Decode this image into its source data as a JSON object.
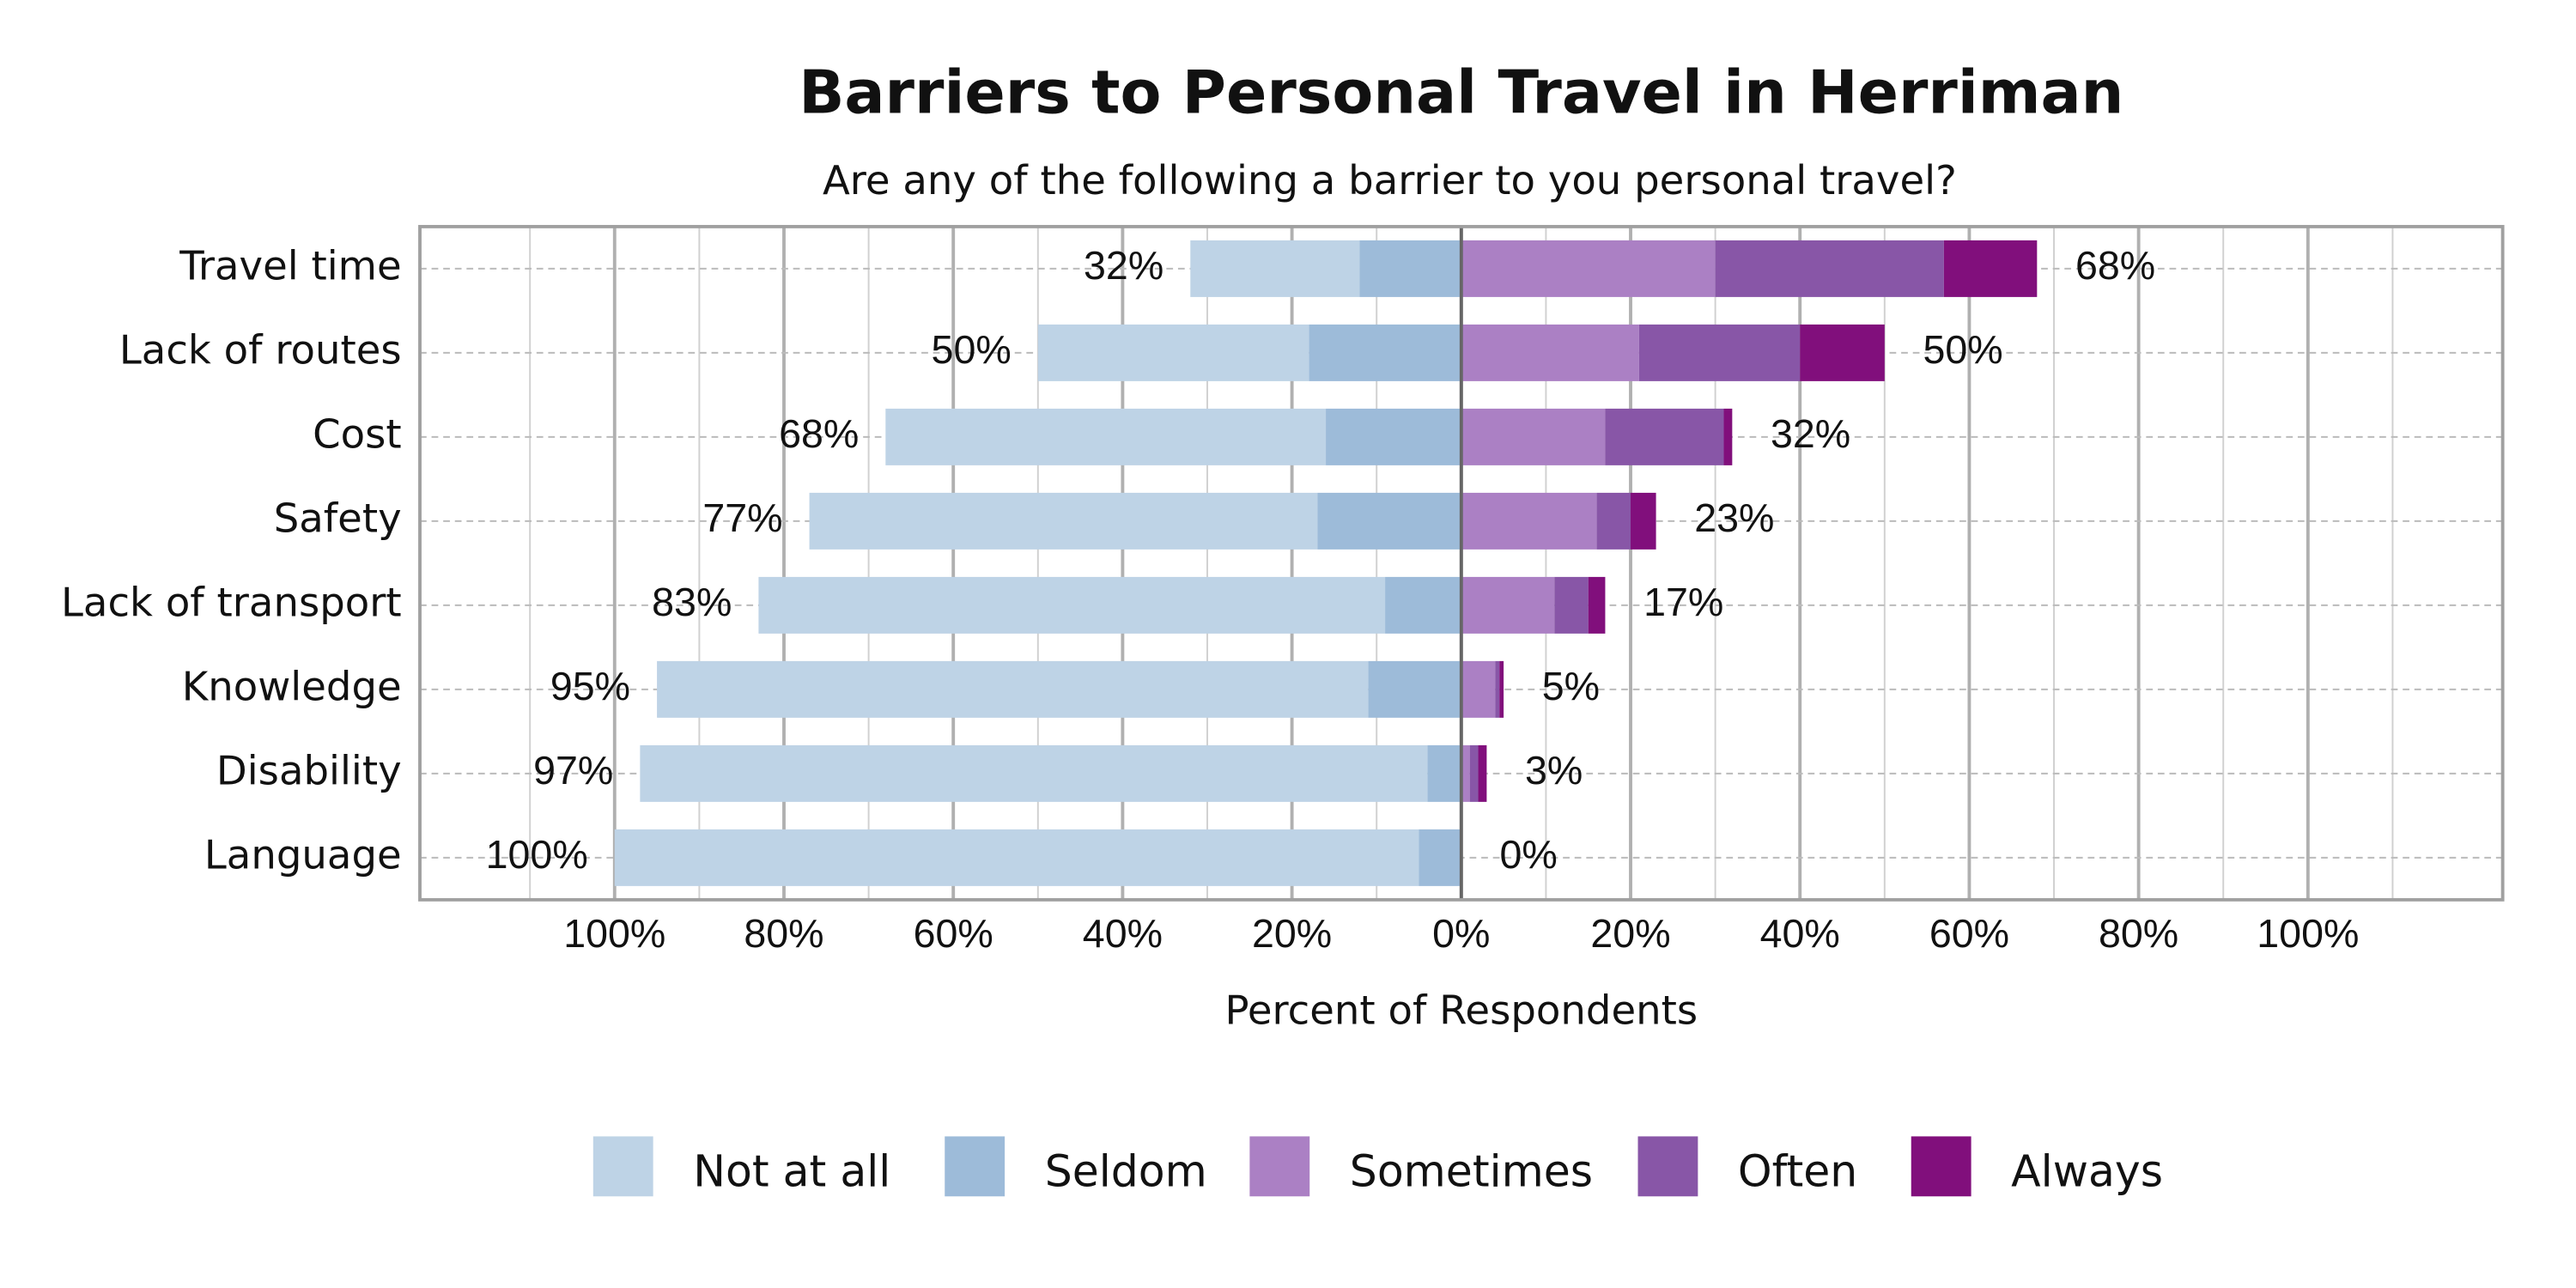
{
  "chart_data": {
    "type": "diverging-bar",
    "title": "Barriers to Personal Travel in Herriman",
    "subtitle": "Are any of the following a barrier to you personal travel?",
    "x_label": "Percent of Respondents",
    "categories": [
      "Travel time",
      "Lack of routes",
      "Cost",
      "Safety",
      "Lack of transport",
      "Knowledge",
      "Disability",
      "Language"
    ],
    "series": [
      {
        "name": "Not at all",
        "color": "#bed3e6",
        "side": "left",
        "values": [
          20,
          32,
          52,
          60,
          74,
          84,
          93,
          95
        ]
      },
      {
        "name": "Seldom",
        "color": "#9dbbd9",
        "side": "left",
        "values": [
          12,
          18,
          16,
          17,
          9,
          11,
          4,
          5
        ]
      },
      {
        "name": "Sometimes",
        "color": "#ab80c4",
        "side": "right",
        "values": [
          30,
          21,
          17,
          16,
          11,
          4,
          1,
          0
        ]
      },
      {
        "name": "Often",
        "color": "#8856a7",
        "side": "right",
        "values": [
          27,
          19,
          14,
          4,
          4,
          0.5,
          1,
          0
        ]
      },
      {
        "name": "Always",
        "color": "#810f7c",
        "side": "right",
        "values": [
          11,
          10,
          1,
          3,
          2,
          0.5,
          1,
          0
        ]
      }
    ],
    "left_totals": {
      "values": [
        32,
        50,
        68,
        77,
        83,
        95,
        97,
        100
      ],
      "value_labels": [
        "32%",
        "50%",
        "68%",
        "77%",
        "83%",
        "95%",
        "97%",
        "100%"
      ]
    },
    "right_totals": {
      "values": [
        68,
        50,
        32,
        23,
        17,
        5,
        3,
        0
      ],
      "value_labels": [
        "68%",
        "50%",
        "32%",
        "23%",
        "17%",
        "5%",
        "3%",
        "0%"
      ]
    },
    "xlim": [
      -123,
      123
    ],
    "xticks": [
      {
        "value": -100,
        "label": "100%"
      },
      {
        "value": -80,
        "label": "80%"
      },
      {
        "value": -60,
        "label": "60%"
      },
      {
        "value": -40,
        "label": "40%"
      },
      {
        "value": -20,
        "label": "20%"
      },
      {
        "value": 0,
        "label": "0%"
      },
      {
        "value": 20,
        "label": "20%"
      },
      {
        "value": 40,
        "label": "40%"
      },
      {
        "value": 60,
        "label": "60%"
      },
      {
        "value": 80,
        "label": "80%"
      },
      {
        "value": 100,
        "label": "100%"
      }
    ],
    "minor_xticks": [
      -110,
      -90,
      -70,
      -50,
      -30,
      -10,
      10,
      30,
      50,
      70,
      90,
      110
    ],
    "grid": true,
    "legend": "bottom"
  }
}
